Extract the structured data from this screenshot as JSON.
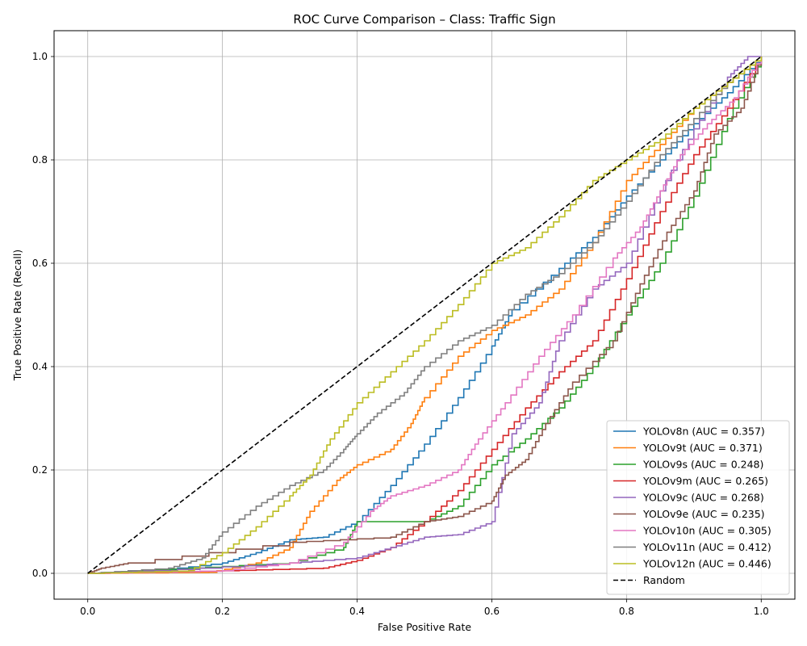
{
  "chart_data": {
    "type": "line",
    "title": "ROC Curve Comparison – Class: Traffic Sign",
    "xlabel": "False Positive Rate",
    "ylabel": "True Positive Rate (Recall)",
    "xlim": [
      -0.05,
      1.05
    ],
    "ylim": [
      -0.05,
      1.05
    ],
    "xticks": [
      "0.0",
      "0.2",
      "0.4",
      "0.6",
      "0.8",
      "1.0"
    ],
    "yticks": [
      "0.0",
      "0.2",
      "0.4",
      "0.6",
      "0.8",
      "1.0"
    ],
    "grid": true,
    "legend_position": "bottom-right",
    "series": [
      {
        "name": "YOLOv8n (AUC = 0.357)",
        "color": "#1f77b4",
        "dashed": false,
        "points": [
          [
            0,
            0
          ],
          [
            0.1,
            0.005
          ],
          [
            0.2,
            0.02
          ],
          [
            0.25,
            0.04
          ],
          [
            0.3,
            0.065
          ],
          [
            0.35,
            0.07
          ],
          [
            0.4,
            0.1
          ],
          [
            0.45,
            0.17
          ],
          [
            0.5,
            0.25
          ],
          [
            0.55,
            0.34
          ],
          [
            0.6,
            0.44
          ],
          [
            0.63,
            0.51
          ],
          [
            0.7,
            0.59
          ],
          [
            0.75,
            0.65
          ],
          [
            0.8,
            0.73
          ],
          [
            0.85,
            0.8
          ],
          [
            0.9,
            0.87
          ],
          [
            0.95,
            0.93
          ],
          [
            1.0,
            1.0
          ]
        ]
      },
      {
        "name": "YOLOv9t (AUC = 0.371)",
        "color": "#ff7f0e",
        "dashed": false,
        "points": [
          [
            0,
            0
          ],
          [
            0.18,
            0.002
          ],
          [
            0.25,
            0.02
          ],
          [
            0.3,
            0.05
          ],
          [
            0.33,
            0.12
          ],
          [
            0.37,
            0.18
          ],
          [
            0.4,
            0.21
          ],
          [
            0.45,
            0.24
          ],
          [
            0.48,
            0.29
          ],
          [
            0.5,
            0.34
          ],
          [
            0.55,
            0.42
          ],
          [
            0.6,
            0.47
          ],
          [
            0.65,
            0.5
          ],
          [
            0.7,
            0.55
          ],
          [
            0.75,
            0.64
          ],
          [
            0.8,
            0.76
          ],
          [
            0.85,
            0.83
          ],
          [
            0.9,
            0.9
          ],
          [
            0.95,
            0.95
          ],
          [
            1.0,
            1.0
          ]
        ]
      },
      {
        "name": "YOLOv9s (AUC = 0.248)",
        "color": "#2ca02c",
        "dashed": false,
        "points": [
          [
            0,
            0
          ],
          [
            0.15,
            0.01
          ],
          [
            0.3,
            0.02
          ],
          [
            0.38,
            0.05
          ],
          [
            0.4,
            0.1
          ],
          [
            0.5,
            0.1
          ],
          [
            0.55,
            0.13
          ],
          [
            0.6,
            0.21
          ],
          [
            0.65,
            0.26
          ],
          [
            0.7,
            0.32
          ],
          [
            0.75,
            0.4
          ],
          [
            0.8,
            0.5
          ],
          [
            0.85,
            0.6
          ],
          [
            0.9,
            0.73
          ],
          [
            0.95,
            0.88
          ],
          [
            1.0,
            1.0
          ]
        ]
      },
      {
        "name": "YOLOv9m (AUC = 0.265)",
        "color": "#d62728",
        "dashed": false,
        "points": [
          [
            0,
            0
          ],
          [
            0.2,
            0.005
          ],
          [
            0.35,
            0.01
          ],
          [
            0.4,
            0.025
          ],
          [
            0.45,
            0.05
          ],
          [
            0.5,
            0.1
          ],
          [
            0.55,
            0.16
          ],
          [
            0.6,
            0.24
          ],
          [
            0.65,
            0.32
          ],
          [
            0.7,
            0.39
          ],
          [
            0.75,
            0.45
          ],
          [
            0.8,
            0.57
          ],
          [
            0.85,
            0.7
          ],
          [
            0.9,
            0.81
          ],
          [
            0.95,
            0.9
          ],
          [
            1.0,
            1.0
          ]
        ]
      },
      {
        "name": "YOLOv9c (AUC = 0.268)",
        "color": "#9467bd",
        "dashed": false,
        "points": [
          [
            0,
            0
          ],
          [
            0.1,
            0.005
          ],
          [
            0.3,
            0.02
          ],
          [
            0.4,
            0.03
          ],
          [
            0.45,
            0.05
          ],
          [
            0.5,
            0.07
          ],
          [
            0.55,
            0.075
          ],
          [
            0.6,
            0.1
          ],
          [
            0.63,
            0.27
          ],
          [
            0.67,
            0.33
          ],
          [
            0.7,
            0.45
          ],
          [
            0.75,
            0.55
          ],
          [
            0.8,
            0.6
          ],
          [
            0.85,
            0.74
          ],
          [
            0.9,
            0.86
          ],
          [
            0.95,
            0.96
          ],
          [
            0.98,
            1.0
          ],
          [
            1.0,
            1.0
          ]
        ]
      },
      {
        "name": "YOLOv9e (AUC = 0.235)",
        "color": "#8c564b",
        "dashed": false,
        "points": [
          [
            0,
            0
          ],
          [
            0.02,
            0.01
          ],
          [
            0.06,
            0.02
          ],
          [
            0.3,
            0.06
          ],
          [
            0.45,
            0.07
          ],
          [
            0.5,
            0.1
          ],
          [
            0.55,
            0.11
          ],
          [
            0.6,
            0.14
          ],
          [
            0.62,
            0.19
          ],
          [
            0.65,
            0.22
          ],
          [
            0.68,
            0.29
          ],
          [
            0.72,
            0.37
          ],
          [
            0.78,
            0.45
          ],
          [
            0.82,
            0.56
          ],
          [
            0.86,
            0.66
          ],
          [
            0.9,
            0.74
          ],
          [
            0.93,
            0.85
          ],
          [
            0.97,
            0.9
          ],
          [
            1.0,
            1.0
          ]
        ]
      },
      {
        "name": "YOLOv10n (AUC = 0.305)",
        "color": "#e377c2",
        "dashed": false,
        "points": [
          [
            0,
            0
          ],
          [
            0.2,
            0.005
          ],
          [
            0.3,
            0.02
          ],
          [
            0.38,
            0.06
          ],
          [
            0.42,
            0.12
          ],
          [
            0.45,
            0.15
          ],
          [
            0.5,
            0.17
          ],
          [
            0.55,
            0.2
          ],
          [
            0.58,
            0.26
          ],
          [
            0.62,
            0.33
          ],
          [
            0.67,
            0.42
          ],
          [
            0.72,
            0.5
          ],
          [
            0.78,
            0.61
          ],
          [
            0.82,
            0.67
          ],
          [
            0.85,
            0.74
          ],
          [
            0.88,
            0.81
          ],
          [
            0.92,
            0.87
          ],
          [
            0.96,
            0.92
          ],
          [
            1.0,
            1.0
          ]
        ]
      },
      {
        "name": "YOLOv11n (AUC = 0.412)",
        "color": "#7f7f7f",
        "dashed": false,
        "points": [
          [
            0,
            0
          ],
          [
            0.12,
            0.01
          ],
          [
            0.17,
            0.03
          ],
          [
            0.2,
            0.08
          ],
          [
            0.25,
            0.13
          ],
          [
            0.3,
            0.17
          ],
          [
            0.35,
            0.2
          ],
          [
            0.38,
            0.24
          ],
          [
            0.4,
            0.27
          ],
          [
            0.43,
            0.31
          ],
          [
            0.47,
            0.35
          ],
          [
            0.5,
            0.4
          ],
          [
            0.55,
            0.45
          ],
          [
            0.6,
            0.48
          ],
          [
            0.65,
            0.54
          ],
          [
            0.7,
            0.58
          ],
          [
            0.75,
            0.64
          ],
          [
            0.8,
            0.72
          ],
          [
            0.85,
            0.81
          ],
          [
            0.9,
            0.88
          ],
          [
            0.95,
            0.95
          ],
          [
            1.0,
            1.0
          ]
        ]
      },
      {
        "name": "YOLOv12n (AUC = 0.446)",
        "color": "#bcbd22",
        "dashed": false,
        "points": [
          [
            0,
            0
          ],
          [
            0.15,
            0.005
          ],
          [
            0.2,
            0.04
          ],
          [
            0.25,
            0.09
          ],
          [
            0.3,
            0.15
          ],
          [
            0.33,
            0.19
          ],
          [
            0.36,
            0.26
          ],
          [
            0.4,
            0.33
          ],
          [
            0.45,
            0.39
          ],
          [
            0.5,
            0.45
          ],
          [
            0.55,
            0.52
          ],
          [
            0.6,
            0.6
          ],
          [
            0.65,
            0.63
          ],
          [
            0.7,
            0.69
          ],
          [
            0.75,
            0.76
          ],
          [
            0.8,
            0.8
          ],
          [
            0.85,
            0.84
          ],
          [
            0.9,
            0.9
          ],
          [
            0.95,
            0.95
          ],
          [
            1.0,
            1.0
          ]
        ]
      },
      {
        "name": "Random",
        "color": "#000000",
        "dashed": true,
        "points": [
          [
            0,
            0
          ],
          [
            1,
            1
          ]
        ]
      }
    ]
  }
}
